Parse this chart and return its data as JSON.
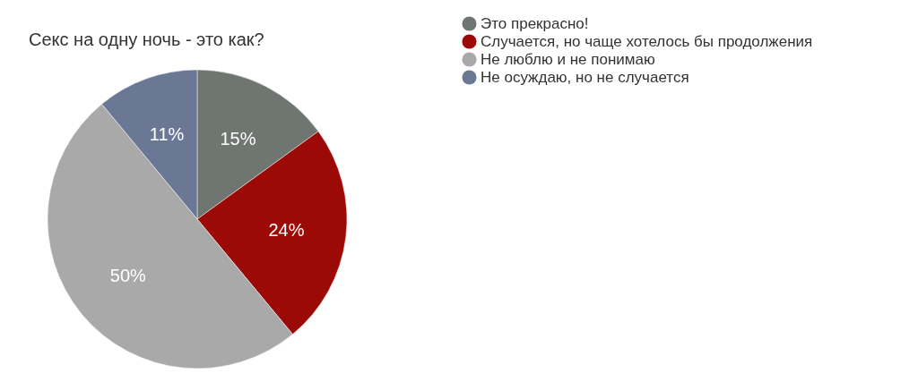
{
  "chart_data": {
    "type": "pie",
    "title": "Секс на одну ночь - это как?",
    "categories": [
      "Это прекрасно!",
      "Случается, но чаще хотелось бы продолжения",
      "Не люблю и не понимаю",
      "Не осуждаю, но не случается"
    ],
    "values": [
      15,
      24,
      50,
      11
    ],
    "colors": [
      "#6f7570",
      "#9b0a06",
      "#a9a9a9",
      "#6a7896"
    ],
    "value_labels": [
      "15%",
      "24%",
      "50%",
      "11%"
    ],
    "legend": "top right"
  }
}
